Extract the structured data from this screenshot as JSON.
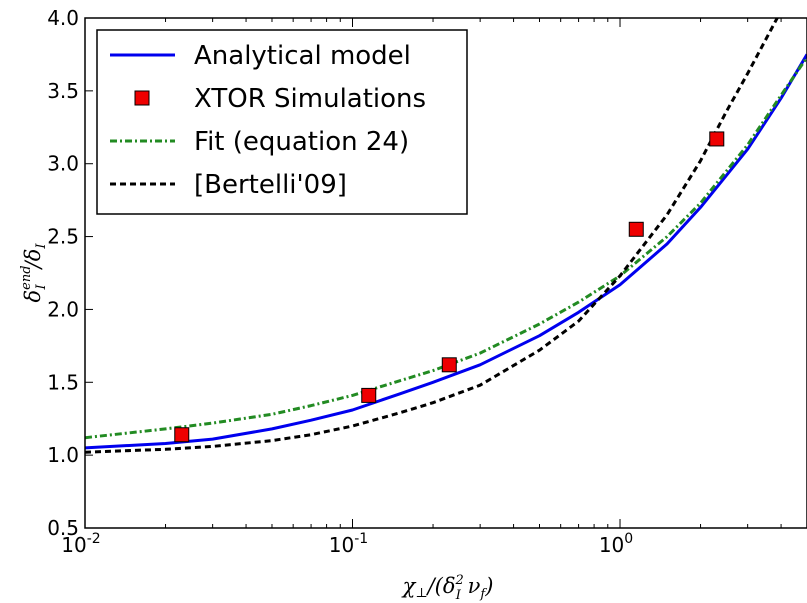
{
  "chart_data": {
    "type": "line",
    "x_scale": "log",
    "xlim": [
      0.01,
      5.0
    ],
    "ylim": [
      0.5,
      4.0
    ],
    "x_ticks": [
      {
        "value": 0.01,
        "base": "10",
        "exp": "-2"
      },
      {
        "value": 0.1,
        "base": "10",
        "exp": "-1"
      },
      {
        "value": 1,
        "base": "10",
        "exp": "0"
      }
    ],
    "y_ticks": [
      {
        "value": 0.5,
        "label": "0.5"
      },
      {
        "value": 1.0,
        "label": "1.0"
      },
      {
        "value": 1.5,
        "label": "1.5"
      },
      {
        "value": 2.0,
        "label": "2.0"
      },
      {
        "value": 2.5,
        "label": "2.5"
      },
      {
        "value": 3.0,
        "label": "3.0"
      },
      {
        "value": 3.5,
        "label": "3.5"
      },
      {
        "value": 4.0,
        "label": "4.0"
      }
    ],
    "xlabel": "χ⊥/(δI² νf)",
    "ylabel": "δI^end/δI",
    "legend_position": "top-left",
    "grid": false,
    "series": [
      {
        "name": "Analytical model",
        "kind": "line",
        "style": "solid",
        "color": "#0000ee",
        "x": [
          0.01,
          0.02,
          0.03,
          0.05,
          0.07,
          0.1,
          0.15,
          0.2,
          0.3,
          0.5,
          0.7,
          1.0,
          1.5,
          2.0,
          3.0,
          4.0,
          5.0
        ],
        "y": [
          1.05,
          1.08,
          1.11,
          1.18,
          1.24,
          1.31,
          1.42,
          1.5,
          1.62,
          1.82,
          1.98,
          2.17,
          2.45,
          2.7,
          3.1,
          3.45,
          3.75
        ]
      },
      {
        "name": "XTOR Simulations",
        "kind": "scatter",
        "marker": "square",
        "color": "#ee0000",
        "x": [
          0.023,
          0.115,
          0.23,
          1.15,
          2.3
        ],
        "y": [
          1.14,
          1.41,
          1.62,
          2.55,
          3.17
        ]
      },
      {
        "name": "Fit (equation 24)",
        "kind": "line",
        "style": "dashdot",
        "color": "#228b22",
        "x": [
          0.01,
          0.02,
          0.03,
          0.05,
          0.07,
          0.1,
          0.15,
          0.2,
          0.3,
          0.5,
          0.7,
          1.0,
          1.5,
          2.0,
          3.0,
          4.0,
          5.0
        ],
        "y": [
          1.12,
          1.18,
          1.22,
          1.28,
          1.34,
          1.41,
          1.51,
          1.58,
          1.7,
          1.9,
          2.05,
          2.23,
          2.5,
          2.73,
          3.13,
          3.47,
          3.73
        ]
      },
      {
        "name": "[Bertelli'09]",
        "kind": "line",
        "style": "dashed",
        "color": "#000000",
        "x": [
          0.01,
          0.02,
          0.03,
          0.05,
          0.07,
          0.1,
          0.15,
          0.2,
          0.3,
          0.5,
          0.7,
          1.0,
          1.5,
          2.0,
          2.5,
          3.0,
          4.0
        ],
        "y": [
          1.02,
          1.04,
          1.06,
          1.1,
          1.14,
          1.2,
          1.29,
          1.36,
          1.48,
          1.72,
          1.92,
          2.23,
          2.65,
          3.02,
          3.36,
          3.62,
          4.05
        ]
      }
    ]
  }
}
